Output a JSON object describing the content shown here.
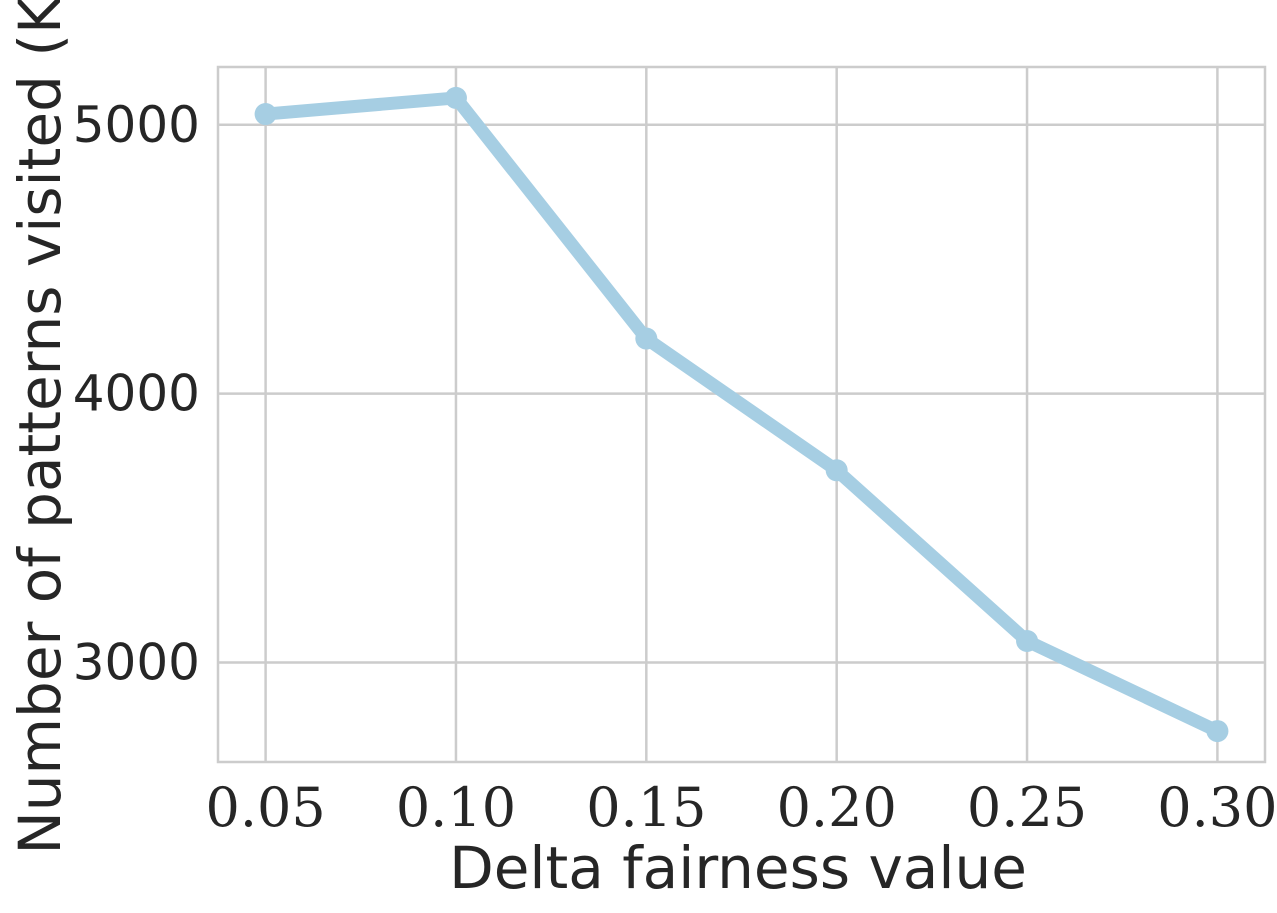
{
  "chart_data": {
    "type": "line",
    "title": "",
    "xlabel": "Delta fairness value",
    "ylabel": "Number of patterns visited (K)",
    "x": [
      0.05,
      0.1,
      0.15,
      0.2,
      0.25,
      0.3
    ],
    "x_tick_labels": [
      "0.05",
      "0.10",
      "0.15",
      "0.20",
      "0.25",
      "0.30"
    ],
    "y_ticks": [
      3000,
      4000,
      5000
    ],
    "y_tick_labels": [
      "3000",
      "4000",
      "5000"
    ],
    "xlim": [
      0.0375,
      0.3125
    ],
    "ylim": [
      2630,
      5215
    ],
    "grid": true,
    "series": [
      {
        "values": [
          5040,
          5100,
          4205,
          3715,
          3080,
          2745
        ],
        "color": "#a6cee3"
      }
    ]
  }
}
